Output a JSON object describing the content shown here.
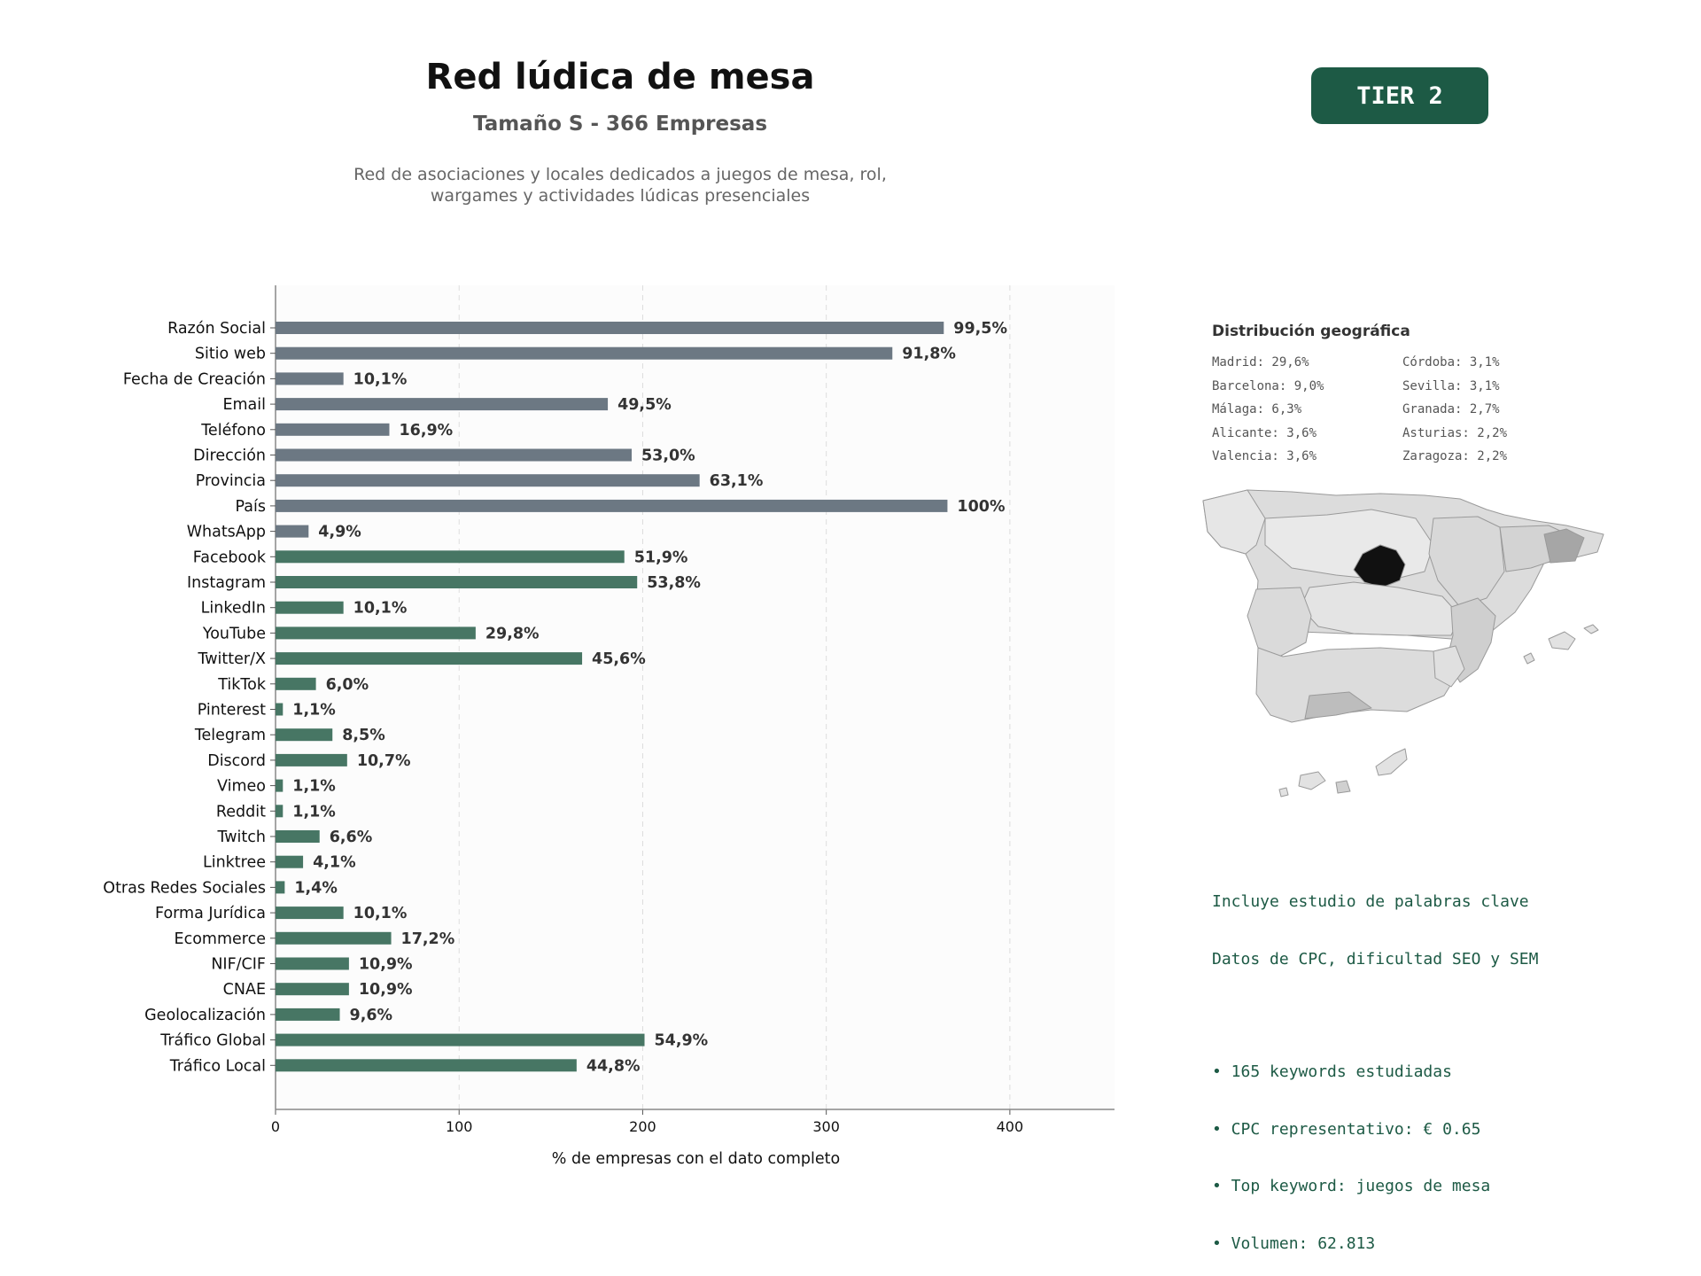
{
  "header": {
    "title": "Red lúdica de mesa",
    "subtitle": "Tamaño S - 366 Empresas",
    "description_line1": "Red de asociaciones y locales dedicados a juegos de mesa, rol,",
    "description_line2": "wargames y actividades lúdicas presenciales",
    "tier": "TIER 2"
  },
  "colors": {
    "data_fields": "#6c7883",
    "social_fields": "#477664",
    "badge": "#1d5a45",
    "map_highlight": "#111111"
  },
  "chart_data": {
    "type": "bar",
    "orientation": "horizontal",
    "xlabel": "% de empresas con el dato completo",
    "xlim": [
      0,
      457
    ],
    "xticks": [
      0,
      100,
      200,
      300,
      400
    ],
    "grid": "vertical dashed",
    "categories": [
      "Razón Social",
      "Sitio web",
      "Fecha de Creación",
      "Email",
      "Teléfono",
      "Dirección",
      "Provincia",
      "País",
      "WhatsApp",
      "Facebook",
      "Instagram",
      "LinkedIn",
      "YouTube",
      "Twitter/X",
      "TikTok",
      "Pinterest",
      "Telegram",
      "Discord",
      "Vimeo",
      "Reddit",
      "Twitch",
      "Linktree",
      "Otras Redes Sociales",
      "Forma Jurídica",
      "Ecommerce",
      "NIF/CIF",
      "CNAE",
      "Geolocalización",
      "Tráfico Global",
      "Tráfico Local"
    ],
    "values": [
      364,
      336,
      37,
      181,
      62,
      194,
      231,
      366,
      18,
      190,
      197,
      37,
      109,
      167,
      22,
      4,
      31,
      39,
      4,
      4,
      24,
      15,
      5,
      37,
      63,
      40,
      40,
      35,
      201,
      164
    ],
    "labels": [
      "99,5%",
      "91,8%",
      "10,1%",
      "49,5%",
      "16,9%",
      "53,0%",
      "63,1%",
      "100%",
      "4,9%",
      "51,9%",
      "53,8%",
      "10,1%",
      "29,8%",
      "45,6%",
      "6,0%",
      "1,1%",
      "8,5%",
      "10,7%",
      "1,1%",
      "1,1%",
      "6,6%",
      "4,1%",
      "1,4%",
      "10,1%",
      "17,2%",
      "10,9%",
      "10,9%",
      "9,6%",
      "54,9%",
      "44,8%"
    ],
    "groups": [
      "data",
      "data",
      "data",
      "data",
      "data",
      "data",
      "data",
      "data",
      "data",
      "social",
      "social",
      "social",
      "social",
      "social",
      "social",
      "social",
      "social",
      "social",
      "social",
      "social",
      "social",
      "social",
      "social",
      "social",
      "social",
      "social",
      "social",
      "social",
      "social",
      "social"
    ]
  },
  "geo": {
    "title": "Distribución geográfica",
    "items": [
      "Madrid: 29,6%",
      "Córdoba: 3,1%",
      "Barcelona: 9,0%",
      "Sevilla: 3,1%",
      "Málaga: 6,3%",
      "Granada: 2,7%",
      "Alicante: 3,6%",
      "Asturias: 2,2%",
      "Valencia: 3,6%",
      "Zaragoza: 2,2%"
    ]
  },
  "seo": {
    "line1": "Incluye estudio de palabras clave",
    "line2": "Datos de CPC, dificultad SEO y SEM",
    "bullets": [
      "• 165 keywords estudiadas",
      "• CPC representativo: € 0.65",
      "• Top keyword: juegos de mesa",
      "• Volumen: 62.813"
    ]
  }
}
